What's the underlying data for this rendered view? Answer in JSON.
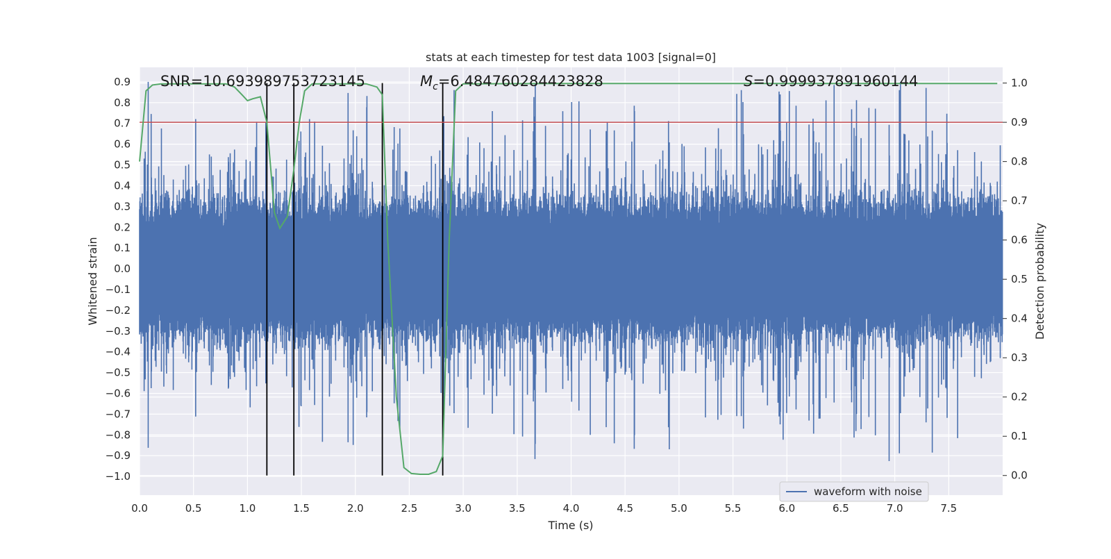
{
  "chart_data": {
    "type": "line",
    "title": "stats at each timestep for test data 1003 [signal=0]",
    "xlabel": "Time (s)",
    "ylabel_left": "Whitened strain",
    "ylabel_right": "Detection probability",
    "xlim": [
      0.0,
      8.0
    ],
    "ylim_left": [
      -1.09,
      0.97
    ],
    "ylim_right": [
      -0.05,
      1.04
    ],
    "x_ticks": [
      "0.0",
      "0.5",
      "1.0",
      "1.5",
      "2.0",
      "2.5",
      "3.0",
      "3.5",
      "4.0",
      "4.5",
      "5.0",
      "5.5",
      "6.0",
      "6.5",
      "7.0",
      "7.5"
    ],
    "y_ticks_left": [
      "0.9",
      "0.8",
      "0.7",
      "0.6",
      "0.5",
      "0.4",
      "0.3",
      "0.2",
      "0.1",
      "0.0",
      "−0.1",
      "−0.2",
      "−0.3",
      "−0.4",
      "−0.5",
      "−0.6",
      "−0.7",
      "−0.8",
      "−0.9",
      "−1.0"
    ],
    "y_ticks_right": [
      "1.0",
      "0.9",
      "0.8",
      "0.7",
      "0.6",
      "0.5",
      "0.4",
      "0.3",
      "0.2",
      "0.1",
      "0.0"
    ],
    "annotations": {
      "snr_text": "SNR=10.693989753723145",
      "mc_symbol": "M",
      "mc_subscript": "c",
      "mc_value": "=6.484760284423828",
      "s_symbol": "S",
      "s_value": "=0.999937891960144"
    },
    "legend": {
      "label": "waveform with noise",
      "location": "lower right"
    },
    "threshold_probability": 0.9,
    "segment_boundaries_s": [
      1.18,
      1.43,
      2.25,
      2.81
    ],
    "series": [
      {
        "name": "waveform with noise",
        "axis": "left",
        "color": "#4c72b0",
        "kind": "noise",
        "duration_s": 8.0,
        "typical_envelope": 0.3,
        "max": 0.9,
        "min": -1.0
      },
      {
        "name": "detection probability",
        "axis": "right",
        "color": "#55a868",
        "x": [
          0.0,
          0.06,
          0.12,
          0.2,
          0.3,
          0.5,
          0.7,
          0.8,
          0.88,
          0.95,
          1.0,
          1.05,
          1.12,
          1.18,
          1.25,
          1.3,
          1.37,
          1.43,
          1.48,
          1.53,
          1.6,
          1.8,
          2.0,
          2.1,
          2.2,
          2.25,
          2.3,
          2.38,
          2.45,
          2.52,
          2.6,
          2.68,
          2.75,
          2.81,
          2.87,
          2.93,
          3.0,
          4.0,
          5.0,
          6.0,
          7.0,
          7.95
        ],
        "values": [
          0.8,
          0.98,
          0.995,
          0.998,
          0.998,
          0.998,
          0.998,
          0.998,
          0.99,
          0.97,
          0.955,
          0.96,
          0.965,
          0.9,
          0.67,
          0.63,
          0.66,
          0.78,
          0.9,
          0.98,
          0.998,
          0.998,
          0.998,
          0.998,
          0.99,
          0.97,
          0.6,
          0.2,
          0.02,
          0.005,
          0.003,
          0.003,
          0.01,
          0.05,
          0.6,
          0.98,
          0.998,
          0.999,
          0.999,
          0.999,
          0.999,
          0.999
        ]
      }
    ]
  }
}
